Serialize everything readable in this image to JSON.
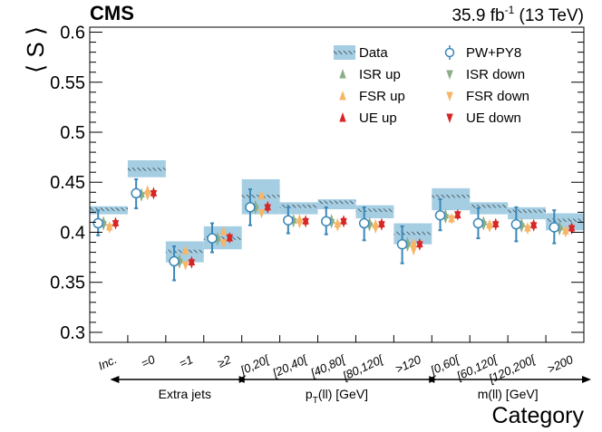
{
  "header": {
    "experiment": "CMS",
    "lumi_main": "35.9 fb",
    "lumi_sup": "-1",
    "lumi_energy": " (13 TeV)"
  },
  "chart_data": {
    "type": "scatter",
    "ylabel": "⟨ S ⟩",
    "xlabel": "Category",
    "ylim": [
      0.29,
      0.605
    ],
    "yticks": [
      0.3,
      0.35,
      0.4,
      0.45,
      0.5,
      0.55,
      0.6
    ],
    "ytick_labels": [
      "0.3",
      "0.35",
      "0.4",
      "0.45",
      "0.5",
      "0.55",
      "0.6"
    ],
    "categories": [
      "Inc.",
      "=0",
      "=1",
      "≥2",
      "[0,20[",
      "[20,40[",
      "[40,80[",
      "[80,120[",
      ">120",
      "[0,60[",
      "[60,120[",
      "[120,200[",
      ">200"
    ],
    "groups": [
      {
        "label": "Extra jets",
        "start": 1,
        "end": 3
      },
      {
        "label": "p",
        "sub": "T",
        "label_rest": "(ll) [GeV]",
        "start": 4,
        "end": 8
      },
      {
        "label": "m(ll) [GeV]",
        "start": 9,
        "end": 12
      }
    ],
    "data": {
      "name": "Data",
      "values": [
        0.423,
        0.463,
        0.381,
        0.394,
        0.436,
        0.426,
        0.43,
        0.422,
        0.399,
        0.436,
        0.426,
        0.421,
        0.412
      ],
      "band_low": [
        0.418,
        0.455,
        0.37,
        0.383,
        0.418,
        0.418,
        0.423,
        0.414,
        0.388,
        0.422,
        0.418,
        0.413,
        0.402
      ],
      "band_high": [
        0.426,
        0.472,
        0.391,
        0.406,
        0.453,
        0.43,
        0.433,
        0.427,
        0.409,
        0.444,
        0.43,
        0.425,
        0.419
      ]
    },
    "series": [
      {
        "name": "PW+PY8",
        "marker": "open-circle",
        "color": "#3a87b8",
        "values": [
          0.409,
          0.439,
          0.371,
          0.394,
          0.425,
          0.412,
          0.411,
          0.409,
          0.388,
          0.417,
          0.409,
          0.408,
          0.405
        ],
        "err_low": [
          0.397,
          0.424,
          0.352,
          0.38,
          0.407,
          0.399,
          0.398,
          0.392,
          0.369,
          0.402,
          0.394,
          0.391,
          0.389
        ],
        "err_high": [
          0.422,
          0.453,
          0.386,
          0.409,
          0.443,
          0.425,
          0.425,
          0.425,
          0.406,
          0.433,
          0.424,
          0.425,
          0.422
        ]
      },
      {
        "name": "ISR up",
        "marker": "triangle-up",
        "color": "#8aae86",
        "values": [
          0.411,
          0.439,
          0.373,
          0.395,
          0.427,
          0.413,
          0.413,
          0.41,
          0.39,
          0.418,
          0.411,
          0.409,
          0.406
        ]
      },
      {
        "name": "ISR down",
        "marker": "triangle-down",
        "color": "#8aae86",
        "values": [
          0.407,
          0.436,
          0.369,
          0.392,
          0.423,
          0.41,
          0.409,
          0.406,
          0.386,
          0.414,
          0.407,
          0.405,
          0.402
        ]
      },
      {
        "name": "FSR up",
        "marker": "triangle-up",
        "color": "#f7b567",
        "values": [
          0.406,
          0.442,
          0.382,
          0.401,
          0.437,
          0.413,
          0.409,
          0.408,
          0.389,
          0.414,
          0.408,
          0.405,
          0.402
        ]
      },
      {
        "name": "FSR down",
        "marker": "triangle-down",
        "color": "#f7b567",
        "values": [
          0.404,
          0.437,
          0.367,
          0.389,
          0.419,
          0.409,
          0.406,
          0.404,
          0.382,
          0.413,
          0.405,
          0.403,
          0.4
        ]
      },
      {
        "name": "UE up",
        "marker": "triangle-up",
        "color": "#d72626",
        "values": [
          0.41,
          0.44,
          0.371,
          0.395,
          0.426,
          0.412,
          0.412,
          0.409,
          0.389,
          0.418,
          0.409,
          0.408,
          0.405
        ]
      },
      {
        "name": "UE down",
        "marker": "triangle-down",
        "color": "#d72626",
        "values": [
          0.408,
          0.438,
          0.369,
          0.394,
          0.424,
          0.41,
          0.41,
          0.407,
          0.387,
          0.417,
          0.407,
          0.406,
          0.403
        ]
      }
    ],
    "legend": {
      "placement": "top-right",
      "columns": [
        [
          "Data",
          "ISR up",
          "FSR up",
          "UE up"
        ],
        [
          "PW+PY8",
          "ISR down",
          "FSR down",
          "UE down"
        ]
      ]
    },
    "colors": {
      "band": "#a6cee3",
      "data_line": "#000000",
      "error_bar": "#3a87b8"
    }
  }
}
